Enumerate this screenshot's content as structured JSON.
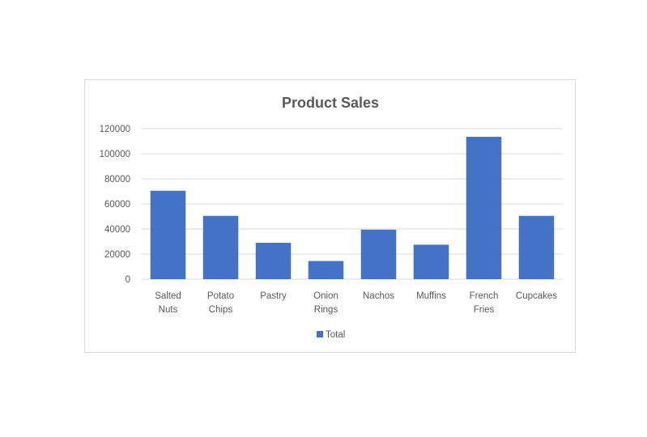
{
  "chart_data": {
    "type": "bar",
    "title": "Product Sales",
    "categories": [
      [
        "Salted",
        "Nuts"
      ],
      [
        "Potato",
        "Chips"
      ],
      [
        "Pastry"
      ],
      [
        "Onion",
        "Rings"
      ],
      [
        "Nachos"
      ],
      [
        "Muffins"
      ],
      [
        "French",
        "Fries"
      ],
      [
        "Cupcakes"
      ]
    ],
    "series": [
      {
        "name": "Total",
        "values": [
          70500,
          50500,
          29000,
          14500,
          39500,
          27500,
          113500,
          50500
        ],
        "color": "#4472c4"
      }
    ],
    "ylim": [
      0,
      120000
    ],
    "yticks": [
      "0",
      "20000",
      "40000",
      "60000",
      "80000",
      "100000",
      "120000"
    ],
    "grid": true,
    "legend_position": "bottom"
  }
}
